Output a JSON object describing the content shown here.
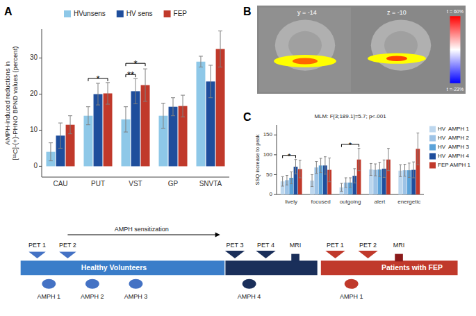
{
  "chart_data": [
    {
      "type": "bar",
      "title": "A",
      "ylabel": "AMPH-induced reductions in\n[¹¹C]-(+)-PHNO BPND values (percent)",
      "categories": [
        "CAU",
        "PUT",
        "VST",
        "GP",
        "SNVTA"
      ],
      "series": [
        {
          "name": "HVunsens",
          "color": "#8EC8E8",
          "values": [
            4.0,
            14.0,
            13.0,
            14.0,
            29.0
          ],
          "errors": [
            2.5,
            2.5,
            3.5,
            3.5,
            1.5
          ]
        },
        {
          "name": "HV sens",
          "color": "#1F4E9C",
          "values": [
            8.5,
            20.0,
            20.8,
            16.5,
            23.5
          ],
          "errors": [
            3.5,
            3.0,
            3.5,
            2.5,
            4.5
          ]
        },
        {
          "name": "FEP",
          "color": "#C0392B",
          "values": [
            11.5,
            20.2,
            22.5,
            16.7,
            32.5
          ],
          "errors": [
            2.5,
            3.0,
            4.5,
            3.0,
            5.0
          ]
        }
      ],
      "ylim": [
        -3,
        38
      ],
      "yticks": [
        0,
        10,
        20,
        30
      ],
      "grid": false,
      "legend": "top",
      "annotations": [
        "*",
        "**",
        "*"
      ]
    },
    {
      "type": "image",
      "title": "B",
      "annotations": [
        "y = -14",
        "z = -10",
        "t = 60%",
        "t =-23%"
      ],
      "colors": [
        "#909090",
        "#888888",
        "#b0b0b0",
        "#a0a0a0",
        "yellow",
        "#FF6600",
        "#FF4400"
      ]
    },
    {
      "type": "bar",
      "title": "C",
      "ylabel": "SSQ increase to peak",
      "categories": [
        "lively",
        "focused",
        "outgoing",
        "alert",
        "energetic"
      ],
      "series": [
        {
          "name": "HV  AMPH 1",
          "color": "#BDD7EE",
          "values": [
            33,
            35,
            18,
            63,
            60
          ],
          "errors": [
            12,
            15,
            10,
            15,
            15
          ]
        },
        {
          "name": "HV  AMPH 2",
          "color": "#9DC3E6",
          "values": [
            36,
            68,
            30,
            62,
            61
          ],
          "errors": [
            12,
            15,
            12,
            15,
            15
          ]
        },
        {
          "name": "HV  AMPH 3",
          "color": "#5BA3D9",
          "values": [
            42,
            73,
            30,
            63,
            61
          ],
          "errors": [
            15,
            18,
            12,
            18,
            18
          ]
        },
        {
          "name": "HV  AMPH 4",
          "color": "#1F4E9C",
          "values": [
            70,
            73,
            47,
            65,
            62
          ],
          "errors": [
            18,
            22,
            18,
            22,
            20
          ]
        },
        {
          "name": "FEP AMPH 1",
          "color": "#C0392B",
          "values": [
            64,
            62,
            88,
            88,
            115
          ],
          "errors": [
            22,
            30,
            28,
            28,
            40
          ]
        }
      ],
      "ylim": [
        0,
        175
      ],
      "yticks": [
        0,
        50,
        100,
        150
      ],
      "grid": false,
      "legend": "right",
      "annotations": [
        "MLM: F[3;189.1]=5.7; p<.001",
        "*",
        "*"
      ]
    },
    {
      "type": "timeline",
      "annotations": [
        "Healthy Volunteers",
        "Patients with FEP",
        "PET 1",
        "PET 2",
        "PET 3",
        "PET 4",
        "MRI",
        "PET 1",
        "PET 2",
        "MRI",
        "AMPH 1",
        "AMPH 2",
        "AMPH 3",
        "AMPH 4",
        "AMPH 1",
        "AMPH sensitization"
      ],
      "colors": [
        "#3A7DC9",
        "#1A2F5A",
        "#C0392B",
        "#4472C4",
        "#8B1A1A"
      ]
    }
  ]
}
